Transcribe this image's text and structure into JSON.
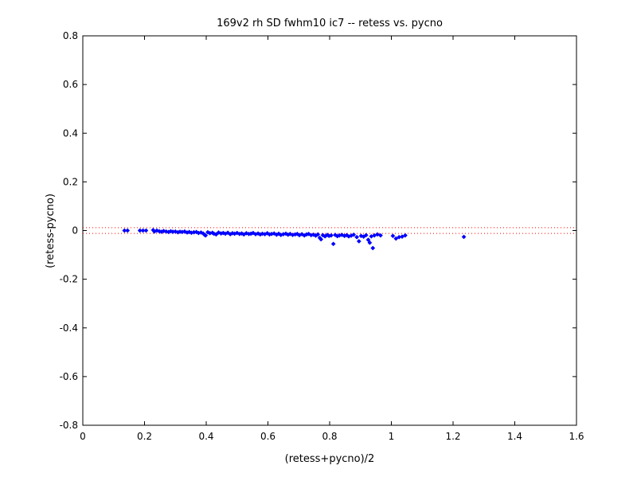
{
  "chart_data": {
    "type": "scatter",
    "title": "169v2 rh SD fwhm10 ic7 -- retess vs. pycno",
    "xlabel": "(retess+pycno)/2",
    "ylabel": "(retess-pycno)",
    "xlim": [
      0,
      1.6
    ],
    "ylim": [
      -0.8,
      0.8
    ],
    "xticks": [
      0,
      0.2,
      0.4,
      0.6,
      0.8,
      1,
      1.2,
      1.4,
      1.6
    ],
    "xtick_labels": [
      "0",
      "0.2",
      "0.4",
      "0.6",
      "0.8",
      "1",
      "1.2",
      "1.4",
      "1.6"
    ],
    "yticks": [
      -0.8,
      -0.6,
      -0.4,
      -0.2,
      0,
      0.2,
      0.4,
      0.6,
      0.8
    ],
    "ytick_labels": [
      "-0.8",
      "-0.6",
      "-0.4",
      "-0.2",
      "0",
      "0.2",
      "0.4",
      "0.6",
      "0.8"
    ],
    "grid": false,
    "marker_color": "#0000ff",
    "reference_lines": [
      {
        "y": 0.012,
        "style": "dotted",
        "color": "#ff0000"
      },
      {
        "y": -0.012,
        "style": "dotted",
        "color": "#ff0000"
      }
    ],
    "points": [
      [
        0.135,
        0.0
      ],
      [
        0.145,
        0.0
      ],
      [
        0.185,
        0.0
      ],
      [
        0.195,
        0.0
      ],
      [
        0.205,
        0.0
      ],
      [
        0.228,
        0.002
      ],
      [
        0.232,
        -0.004
      ],
      [
        0.24,
        0.0
      ],
      [
        0.248,
        -0.003
      ],
      [
        0.255,
        -0.005
      ],
      [
        0.262,
        -0.002
      ],
      [
        0.27,
        -0.004
      ],
      [
        0.278,
        -0.006
      ],
      [
        0.285,
        -0.003
      ],
      [
        0.292,
        -0.005
      ],
      [
        0.3,
        -0.004
      ],
      [
        0.308,
        -0.007
      ],
      [
        0.315,
        -0.005
      ],
      [
        0.322,
        -0.006
      ],
      [
        0.33,
        -0.004
      ],
      [
        0.338,
        -0.008
      ],
      [
        0.345,
        -0.006
      ],
      [
        0.352,
        -0.009
      ],
      [
        0.36,
        -0.007
      ],
      [
        0.368,
        -0.006
      ],
      [
        0.375,
        -0.01
      ],
      [
        0.383,
        -0.008
      ],
      [
        0.39,
        -0.012
      ],
      [
        0.395,
        -0.018
      ],
      [
        0.398,
        -0.02
      ],
      [
        0.405,
        -0.007
      ],
      [
        0.412,
        -0.011
      ],
      [
        0.42,
        -0.009
      ],
      [
        0.425,
        -0.013
      ],
      [
        0.432,
        -0.016
      ],
      [
        0.44,
        -0.008
      ],
      [
        0.448,
        -0.012
      ],
      [
        0.455,
        -0.01
      ],
      [
        0.462,
        -0.013
      ],
      [
        0.47,
        -0.009
      ],
      [
        0.478,
        -0.015
      ],
      [
        0.485,
        -0.011
      ],
      [
        0.492,
        -0.013
      ],
      [
        0.5,
        -0.01
      ],
      [
        0.508,
        -0.014
      ],
      [
        0.515,
        -0.012
      ],
      [
        0.522,
        -0.016
      ],
      [
        0.53,
        -0.011
      ],
      [
        0.538,
        -0.014
      ],
      [
        0.545,
        -0.013
      ],
      [
        0.552,
        -0.01
      ],
      [
        0.56,
        -0.015
      ],
      [
        0.568,
        -0.012
      ],
      [
        0.575,
        -0.016
      ],
      [
        0.582,
        -0.013
      ],
      [
        0.59,
        -0.015
      ],
      [
        0.598,
        -0.011
      ],
      [
        0.605,
        -0.016
      ],
      [
        0.612,
        -0.014
      ],
      [
        0.62,
        -0.012
      ],
      [
        0.628,
        -0.017
      ],
      [
        0.635,
        -0.013
      ],
      [
        0.642,
        -0.018
      ],
      [
        0.65,
        -0.015
      ],
      [
        0.658,
        -0.013
      ],
      [
        0.665,
        -0.017
      ],
      [
        0.672,
        -0.014
      ],
      [
        0.68,
        -0.018
      ],
      [
        0.688,
        -0.016
      ],
      [
        0.695,
        -0.014
      ],
      [
        0.702,
        -0.019
      ],
      [
        0.71,
        -0.015
      ],
      [
        0.718,
        -0.02
      ],
      [
        0.725,
        -0.016
      ],
      [
        0.732,
        -0.014
      ],
      [
        0.74,
        -0.019
      ],
      [
        0.748,
        -0.017
      ],
      [
        0.755,
        -0.021
      ],
      [
        0.762,
        -0.016
      ],
      [
        0.768,
        -0.03
      ],
      [
        0.772,
        -0.036
      ],
      [
        0.778,
        -0.019
      ],
      [
        0.785,
        -0.024
      ],
      [
        0.792,
        -0.018
      ],
      [
        0.798,
        -0.022
      ],
      [
        0.805,
        -0.02
      ],
      [
        0.812,
        -0.055
      ],
      [
        0.818,
        -0.018
      ],
      [
        0.825,
        -0.023
      ],
      [
        0.832,
        -0.02
      ],
      [
        0.84,
        -0.018
      ],
      [
        0.848,
        -0.022
      ],
      [
        0.855,
        -0.019
      ],
      [
        0.862,
        -0.024
      ],
      [
        0.87,
        -0.021
      ],
      [
        0.878,
        -0.017
      ],
      [
        0.888,
        -0.027
      ],
      [
        0.895,
        -0.044
      ],
      [
        0.902,
        -0.022
      ],
      [
        0.91,
        -0.025
      ],
      [
        0.918,
        -0.019
      ],
      [
        0.925,
        -0.038
      ],
      [
        0.93,
        -0.05
      ],
      [
        0.935,
        -0.024
      ],
      [
        0.94,
        -0.072
      ],
      [
        0.945,
        -0.02
      ],
      [
        0.955,
        -0.016
      ],
      [
        0.965,
        -0.02
      ],
      [
        1.005,
        -0.022
      ],
      [
        1.015,
        -0.033
      ],
      [
        1.025,
        -0.027
      ],
      [
        1.035,
        -0.025
      ],
      [
        1.045,
        -0.02
      ],
      [
        1.235,
        -0.026
      ]
    ]
  }
}
